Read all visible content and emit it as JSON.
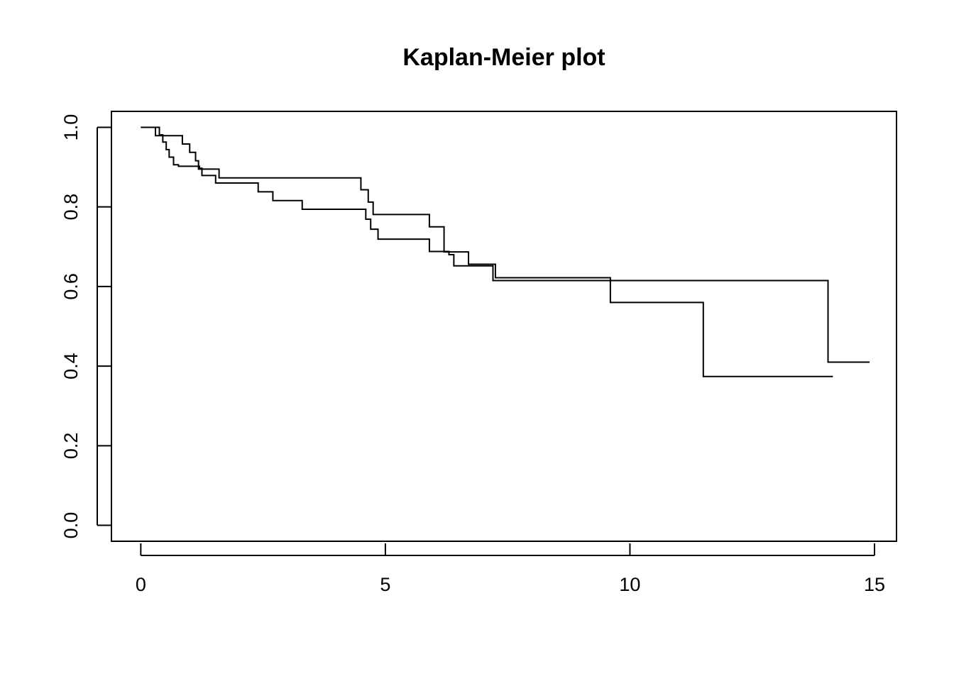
{
  "chart_data": {
    "type": "line",
    "step": true,
    "title": "Kaplan-Meier plot",
    "xlabel": "",
    "ylabel": "",
    "xlim": [
      -0.6,
      15.45
    ],
    "ylim": [
      -0.04,
      1.04
    ],
    "x_ticks": [
      0,
      5,
      10,
      15
    ],
    "x_tick_labels": [
      "0",
      "5",
      "10",
      "15"
    ],
    "y_ticks": [
      0.0,
      0.2,
      0.4,
      0.6,
      0.8,
      1.0
    ],
    "y_tick_labels": [
      "0.0",
      "0.2",
      "0.4",
      "0.6",
      "0.8",
      "1.0"
    ],
    "grid": false,
    "legend": "none",
    "line_color": "#000000",
    "series": [
      {
        "x": [
          0,
          0.38,
          0.45,
          0.52,
          0.58,
          0.67,
          0.77,
          1.2,
          1.25,
          1.53,
          2.4,
          2.7,
          3.3,
          4.6,
          4.7,
          4.85,
          5.05,
          5.9,
          6.3,
          6.4,
          7.2,
          9.6,
          11.5,
          14.15
        ],
        "y": [
          1.0,
          0.981,
          0.963,
          0.944,
          0.925,
          0.906,
          0.902,
          0.897,
          0.879,
          0.86,
          0.838,
          0.816,
          0.794,
          0.769,
          0.744,
          0.719,
          0.719,
          0.688,
          0.68,
          0.652,
          0.615,
          0.56,
          0.374,
          0.374
        ]
      },
      {
        "x": [
          0,
          0.3,
          0.85,
          1.0,
          1.12,
          1.18,
          1.6,
          4.35,
          4.5,
          4.65,
          4.75,
          5.9,
          6.2,
          6.7,
          7.25,
          9.6,
          14.05,
          14.9
        ],
        "y": [
          1.0,
          0.979,
          0.958,
          0.937,
          0.916,
          0.895,
          0.873,
          0.873,
          0.843,
          0.812,
          0.781,
          0.75,
          0.687,
          0.656,
          0.622,
          0.615,
          0.41,
          0.41
        ]
      }
    ]
  }
}
